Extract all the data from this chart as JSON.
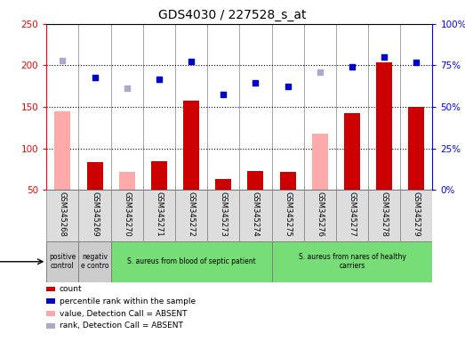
{
  "title": "GDS4030 / 227528_s_at",
  "samples": [
    "GSM345268",
    "GSM345269",
    "GSM345270",
    "GSM345271",
    "GSM345272",
    "GSM345273",
    "GSM345274",
    "GSM345275",
    "GSM345276",
    "GSM345277",
    "GSM345278",
    "GSM345279"
  ],
  "count_values": [
    null,
    83,
    null,
    85,
    158,
    63,
    73,
    72,
    null,
    142,
    204,
    150
  ],
  "count_absent": [
    145,
    null,
    72,
    null,
    null,
    null,
    null,
    null,
    118,
    null,
    null,
    null
  ],
  "rank_values": [
    null,
    185,
    null,
    183,
    205,
    165,
    179,
    175,
    null,
    198,
    210,
    204
  ],
  "rank_absent": [
    206,
    null,
    173,
    null,
    null,
    null,
    null,
    null,
    192,
    null,
    null,
    null
  ],
  "ylim_left": [
    50,
    250
  ],
  "ylim_right": [
    0,
    100
  ],
  "yticks_left": [
    50,
    100,
    150,
    200,
    250
  ],
  "yticks_right": [
    0,
    25,
    50,
    75,
    100
  ],
  "groups": [
    {
      "label": "positive\ncontrol",
      "start": 0,
      "end": 1,
      "color": "#cccccc"
    },
    {
      "label": "negativ\ne contro",
      "start": 1,
      "end": 2,
      "color": "#cccccc"
    },
    {
      "label": "S. aureus from blood of septic patient",
      "start": 2,
      "end": 7,
      "color": "#77dd77"
    },
    {
      "label": "S. aureus from nares of healthy\ncarriers",
      "start": 7,
      "end": 12,
      "color": "#77dd77"
    }
  ],
  "color_count": "#cc0000",
  "color_rank": "#0000cc",
  "color_count_absent": "#ffaaaa",
  "color_rank_absent": "#aaaacc",
  "legend": [
    {
      "color": "#cc0000",
      "label": "count"
    },
    {
      "color": "#0000cc",
      "label": "percentile rank within the sample"
    },
    {
      "color": "#ffaaaa",
      "label": "value, Detection Call = ABSENT"
    },
    {
      "color": "#aaaacc",
      "label": "rank, Detection Call = ABSENT"
    }
  ],
  "fig_width": 5.23,
  "fig_height": 3.84,
  "dpi": 100
}
